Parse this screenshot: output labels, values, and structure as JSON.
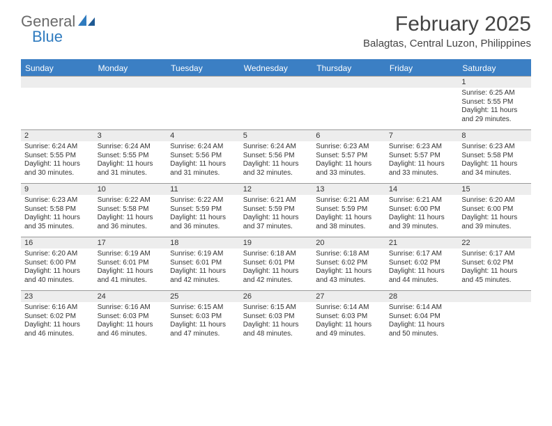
{
  "logo": {
    "text1": "General",
    "text2": "Blue"
  },
  "title": "February 2025",
  "location": "Balagtas, Central Luzon, Philippines",
  "colors": {
    "header_bar": "#3b7fc4",
    "daynum_bg": "#ededed",
    "daynum_border": "#999999",
    "text": "#333333",
    "logo_gray": "#6a6a6a",
    "logo_blue": "#2f7bbf",
    "background": "#ffffff"
  },
  "days_of_week": [
    "Sunday",
    "Monday",
    "Tuesday",
    "Wednesday",
    "Thursday",
    "Friday",
    "Saturday"
  ],
  "weeks": [
    [
      null,
      null,
      null,
      null,
      null,
      null,
      {
        "n": "1",
        "sunrise": "Sunrise: 6:25 AM",
        "sunset": "Sunset: 5:55 PM",
        "daylight": "Daylight: 11 hours and 29 minutes."
      }
    ],
    [
      {
        "n": "2",
        "sunrise": "Sunrise: 6:24 AM",
        "sunset": "Sunset: 5:55 PM",
        "daylight": "Daylight: 11 hours and 30 minutes."
      },
      {
        "n": "3",
        "sunrise": "Sunrise: 6:24 AM",
        "sunset": "Sunset: 5:55 PM",
        "daylight": "Daylight: 11 hours and 31 minutes."
      },
      {
        "n": "4",
        "sunrise": "Sunrise: 6:24 AM",
        "sunset": "Sunset: 5:56 PM",
        "daylight": "Daylight: 11 hours and 31 minutes."
      },
      {
        "n": "5",
        "sunrise": "Sunrise: 6:24 AM",
        "sunset": "Sunset: 5:56 PM",
        "daylight": "Daylight: 11 hours and 32 minutes."
      },
      {
        "n": "6",
        "sunrise": "Sunrise: 6:23 AM",
        "sunset": "Sunset: 5:57 PM",
        "daylight": "Daylight: 11 hours and 33 minutes."
      },
      {
        "n": "7",
        "sunrise": "Sunrise: 6:23 AM",
        "sunset": "Sunset: 5:57 PM",
        "daylight": "Daylight: 11 hours and 33 minutes."
      },
      {
        "n": "8",
        "sunrise": "Sunrise: 6:23 AM",
        "sunset": "Sunset: 5:58 PM",
        "daylight": "Daylight: 11 hours and 34 minutes."
      }
    ],
    [
      {
        "n": "9",
        "sunrise": "Sunrise: 6:23 AM",
        "sunset": "Sunset: 5:58 PM",
        "daylight": "Daylight: 11 hours and 35 minutes."
      },
      {
        "n": "10",
        "sunrise": "Sunrise: 6:22 AM",
        "sunset": "Sunset: 5:58 PM",
        "daylight": "Daylight: 11 hours and 36 minutes."
      },
      {
        "n": "11",
        "sunrise": "Sunrise: 6:22 AM",
        "sunset": "Sunset: 5:59 PM",
        "daylight": "Daylight: 11 hours and 36 minutes."
      },
      {
        "n": "12",
        "sunrise": "Sunrise: 6:21 AM",
        "sunset": "Sunset: 5:59 PM",
        "daylight": "Daylight: 11 hours and 37 minutes."
      },
      {
        "n": "13",
        "sunrise": "Sunrise: 6:21 AM",
        "sunset": "Sunset: 5:59 PM",
        "daylight": "Daylight: 11 hours and 38 minutes."
      },
      {
        "n": "14",
        "sunrise": "Sunrise: 6:21 AM",
        "sunset": "Sunset: 6:00 PM",
        "daylight": "Daylight: 11 hours and 39 minutes."
      },
      {
        "n": "15",
        "sunrise": "Sunrise: 6:20 AM",
        "sunset": "Sunset: 6:00 PM",
        "daylight": "Daylight: 11 hours and 39 minutes."
      }
    ],
    [
      {
        "n": "16",
        "sunrise": "Sunrise: 6:20 AM",
        "sunset": "Sunset: 6:00 PM",
        "daylight": "Daylight: 11 hours and 40 minutes."
      },
      {
        "n": "17",
        "sunrise": "Sunrise: 6:19 AM",
        "sunset": "Sunset: 6:01 PM",
        "daylight": "Daylight: 11 hours and 41 minutes."
      },
      {
        "n": "18",
        "sunrise": "Sunrise: 6:19 AM",
        "sunset": "Sunset: 6:01 PM",
        "daylight": "Daylight: 11 hours and 42 minutes."
      },
      {
        "n": "19",
        "sunrise": "Sunrise: 6:18 AM",
        "sunset": "Sunset: 6:01 PM",
        "daylight": "Daylight: 11 hours and 42 minutes."
      },
      {
        "n": "20",
        "sunrise": "Sunrise: 6:18 AM",
        "sunset": "Sunset: 6:02 PM",
        "daylight": "Daylight: 11 hours and 43 minutes."
      },
      {
        "n": "21",
        "sunrise": "Sunrise: 6:17 AM",
        "sunset": "Sunset: 6:02 PM",
        "daylight": "Daylight: 11 hours and 44 minutes."
      },
      {
        "n": "22",
        "sunrise": "Sunrise: 6:17 AM",
        "sunset": "Sunset: 6:02 PM",
        "daylight": "Daylight: 11 hours and 45 minutes."
      }
    ],
    [
      {
        "n": "23",
        "sunrise": "Sunrise: 6:16 AM",
        "sunset": "Sunset: 6:02 PM",
        "daylight": "Daylight: 11 hours and 46 minutes."
      },
      {
        "n": "24",
        "sunrise": "Sunrise: 6:16 AM",
        "sunset": "Sunset: 6:03 PM",
        "daylight": "Daylight: 11 hours and 46 minutes."
      },
      {
        "n": "25",
        "sunrise": "Sunrise: 6:15 AM",
        "sunset": "Sunset: 6:03 PM",
        "daylight": "Daylight: 11 hours and 47 minutes."
      },
      {
        "n": "26",
        "sunrise": "Sunrise: 6:15 AM",
        "sunset": "Sunset: 6:03 PM",
        "daylight": "Daylight: 11 hours and 48 minutes."
      },
      {
        "n": "27",
        "sunrise": "Sunrise: 6:14 AM",
        "sunset": "Sunset: 6:03 PM",
        "daylight": "Daylight: 11 hours and 49 minutes."
      },
      {
        "n": "28",
        "sunrise": "Sunrise: 6:14 AM",
        "sunset": "Sunset: 6:04 PM",
        "daylight": "Daylight: 11 hours and 50 minutes."
      },
      null
    ]
  ]
}
